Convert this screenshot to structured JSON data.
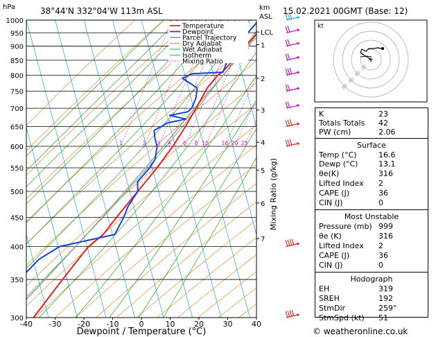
{
  "header": {
    "location": "38°44'N  332°04'W  113m  ASL",
    "datetime": "15.02.2021  00GMT  (Base: 12)",
    "y_unit_left": "hPa",
    "y_unit_right_top": "km",
    "y_unit_right_bottom": "ASL",
    "copyright": "© weatheronline.co.uk"
  },
  "chart_data": {
    "type": "line",
    "title": "",
    "xlabel": "Dewpoint / Temperature (°C)",
    "ylabel": "hPa",
    "y2label": "Mixing Ratio (g/kg)",
    "xlim": [
      -40,
      40
    ],
    "ylim": [
      1000,
      300
    ],
    "y_scale": "log",
    "x_ticks": [
      "-40",
      "-30",
      "-20",
      "-10",
      "0",
      "10",
      "20",
      "30",
      "40"
    ],
    "pressure_levels": [
      "300",
      "350",
      "400",
      "450",
      "500",
      "550",
      "600",
      "650",
      "700",
      "750",
      "800",
      "850",
      "900",
      "950",
      "1000"
    ],
    "height_ticks": [
      {
        "p": 905,
        "label": "1"
      },
      {
        "p": 790,
        "label": "2"
      },
      {
        "p": 695,
        "label": "3"
      },
      {
        "p": 610,
        "label": "4"
      },
      {
        "p": 545,
        "label": "5"
      },
      {
        "p": 477,
        "label": "6"
      },
      {
        "p": 413,
        "label": "7"
      },
      {
        "p": 953,
        "label": "LCL"
      }
    ],
    "mixing_ratio_labels": [
      "1",
      "2",
      "3",
      "4",
      "6",
      "8",
      "10",
      "16",
      "20",
      "25"
    ],
    "legend": [
      "Temperature",
      "Dewpoint",
      "Parcel Trajectory",
      "Dry Adiabat",
      "Wet Adiabat",
      "Isotherm",
      "Mixing Ratio"
    ],
    "legend_position": "top-center",
    "series": [
      {
        "name": "Temperature",
        "color": "#e02020",
        "points": [
          [
            16.6,
            1000
          ],
          [
            13.8,
            950
          ],
          [
            11.0,
            900
          ],
          [
            8.0,
            850
          ],
          [
            5.2,
            810
          ],
          [
            4.0,
            800
          ],
          [
            1.5,
            760
          ],
          [
            -0.5,
            700
          ],
          [
            -2.5,
            650
          ],
          [
            -5.0,
            600
          ],
          [
            -8.5,
            550
          ],
          [
            -13.0,
            500
          ],
          [
            -18.0,
            450
          ],
          [
            -21.0,
            420
          ],
          [
            -25.0,
            400
          ],
          [
            -31.0,
            350
          ],
          [
            -37.5,
            300
          ]
        ]
      },
      {
        "name": "Dewpoint",
        "color": "#1a3fd6",
        "points": [
          [
            13.1,
            1000
          ],
          [
            10.5,
            950
          ],
          [
            9.0,
            920
          ],
          [
            7.0,
            900
          ],
          [
            6.0,
            850
          ],
          [
            5.5,
            810
          ],
          [
            -5.0,
            805
          ],
          [
            -8.0,
            790
          ],
          [
            -2.0,
            760
          ],
          [
            -1.5,
            730
          ],
          [
            -2.0,
            700
          ],
          [
            -3.0,
            690
          ],
          [
            -9.0,
            680
          ],
          [
            -3.0,
            670
          ],
          [
            -9.0,
            660
          ],
          [
            -13.0,
            640
          ],
          [
            -12.0,
            620
          ],
          [
            -10.5,
            600
          ],
          [
            -10.0,
            570
          ],
          [
            -11.0,
            550
          ],
          [
            -14.0,
            520
          ],
          [
            -13.0,
            500
          ],
          [
            -15.0,
            470
          ],
          [
            -15.5,
            450
          ],
          [
            -17.0,
            420
          ],
          [
            -35.0,
            400
          ],
          [
            -41.0,
            380
          ],
          [
            -46.0,
            350
          ],
          [
            -55.0,
            300
          ]
        ]
      },
      {
        "name": "Parcel Trajectory",
        "color": "#a0a0a0",
        "points": [
          [
            16.6,
            1000
          ],
          [
            14.0,
            953
          ],
          [
            12.0,
            900
          ],
          [
            9.0,
            850
          ],
          [
            5.8,
            800
          ],
          [
            2.5,
            750
          ],
          [
            -1.0,
            700
          ],
          [
            -4.5,
            650
          ],
          [
            -8.3,
            600
          ],
          [
            -12.5,
            550
          ],
          [
            -17.5,
            500
          ],
          [
            -23.0,
            450
          ],
          [
            -29.5,
            400
          ],
          [
            -37.0,
            350
          ],
          [
            -46.0,
            300
          ]
        ]
      }
    ],
    "grid": true
  },
  "hodograph": {
    "label": "kt",
    "rings": [
      "20",
      "40",
      "60",
      "80"
    ]
  },
  "indices": [
    {
      "k": "K",
      "v": "23"
    },
    {
      "k": "Totals Totals",
      "v": "42"
    },
    {
      "k": "PW (cm)",
      "v": "2.06"
    }
  ],
  "surface": {
    "title": "Surface",
    "rows": [
      {
        "k": "Temp (°C)",
        "v": "16.6"
      },
      {
        "k": "Dewp (°C)",
        "v": "13.1"
      },
      {
        "k": "θe(K)",
        "v": "316"
      },
      {
        "k": "Lifted Index",
        "v": "2"
      },
      {
        "k": "CAPE (J)",
        "v": "36"
      },
      {
        "k": "CIN (J)",
        "v": "0"
      }
    ]
  },
  "most_unstable": {
    "title": "Most Unstable",
    "rows": [
      {
        "k": "Pressure (mb)",
        "v": "999"
      },
      {
        "k": "θe (K)",
        "v": "316"
      },
      {
        "k": "Lifted Index",
        "v": "2"
      },
      {
        "k": "CAPE (J)",
        "v": "36"
      },
      {
        "k": "CIN (J)",
        "v": "0"
      }
    ]
  },
  "hodograph_indices": {
    "title": "Hodograph",
    "rows": [
      {
        "k": "EH",
        "v": "319"
      },
      {
        "k": "SREH",
        "v": "192"
      },
      {
        "k": "StmDir",
        "v": "259°"
      },
      {
        "k": "StmSpd (kt)",
        "v": "51"
      }
    ]
  },
  "colors": {
    "temperature": "#e02020",
    "dewpoint": "#1a3fd6",
    "parcel": "#a0a0a0",
    "dry_adiabat": "#e08a2a",
    "wet_adiabat": "#2aa02a",
    "isotherm": "#20a0e0",
    "mixing_ratio": "#d020c0"
  }
}
